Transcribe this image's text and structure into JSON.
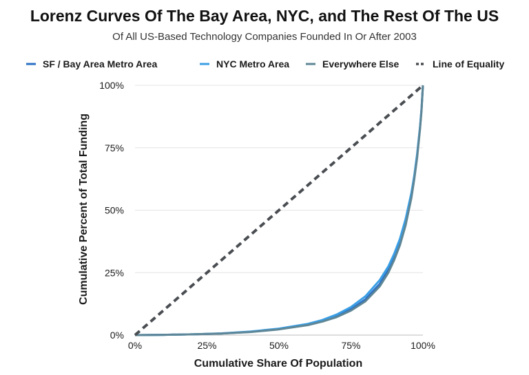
{
  "chart_data": {
    "type": "line",
    "title": "Lorenz Curves Of The Bay Area, NYC, and The Rest Of The US",
    "subtitle": "Of All US-Based Technology Companies Founded In Or After 2003",
    "xlabel": "Cumulative Share Of Population",
    "ylabel": "Cumulative Percent of Total Funding",
    "xlim": [
      0,
      100
    ],
    "ylim": [
      0,
      100
    ],
    "x_ticks": [
      "0%",
      "25%",
      "50%",
      "75%",
      "100%"
    ],
    "y_ticks": [
      "0%",
      "25%",
      "50%",
      "75%",
      "100%"
    ],
    "grid": "horizontal",
    "legend_position": "top",
    "x": [
      0,
      10,
      20,
      30,
      40,
      50,
      60,
      65,
      70,
      75,
      80,
      85,
      88,
      90,
      92,
      94,
      96,
      97,
      98,
      99,
      99.5,
      100
    ],
    "series": [
      {
        "name": "SF / Bay Area Metro Area",
        "color": "#2a6fc4",
        "style": "solid",
        "values": [
          0,
          0.1,
          0.3,
          0.6,
          1.3,
          2.4,
          4.2,
          5.6,
          7.6,
          10.3,
          14.3,
          20.5,
          26.0,
          31.0,
          37.0,
          45.0,
          56.0,
          63.5,
          72.0,
          83.0,
          90.0,
          100
        ]
      },
      {
        "name": "NYC Metro Area",
        "color": "#3a9ee4",
        "style": "solid",
        "values": [
          0,
          0.1,
          0.3,
          0.7,
          1.4,
          2.6,
          4.5,
          6.0,
          8.2,
          11.2,
          15.5,
          22.0,
          27.5,
          32.5,
          38.5,
          46.5,
          57.0,
          64.0,
          72.5,
          83.5,
          90.5,
          100
        ]
      },
      {
        "name": "Everywhere Else",
        "color": "#5e8696",
        "style": "solid",
        "values": [
          0,
          0.1,
          0.3,
          0.6,
          1.2,
          2.3,
          4.0,
          5.4,
          7.2,
          9.8,
          13.5,
          19.5,
          25.0,
          30.0,
          36.0,
          44.0,
          55.0,
          62.5,
          71.0,
          82.5,
          89.5,
          100
        ]
      },
      {
        "name": "Line of Equality",
        "color": "#4a4e52",
        "style": "dashed",
        "values": [
          0,
          10,
          20,
          30,
          40,
          50,
          60,
          65,
          70,
          75,
          80,
          85,
          88,
          90,
          92,
          94,
          96,
          97,
          98,
          99,
          99.5,
          100
        ]
      }
    ]
  }
}
